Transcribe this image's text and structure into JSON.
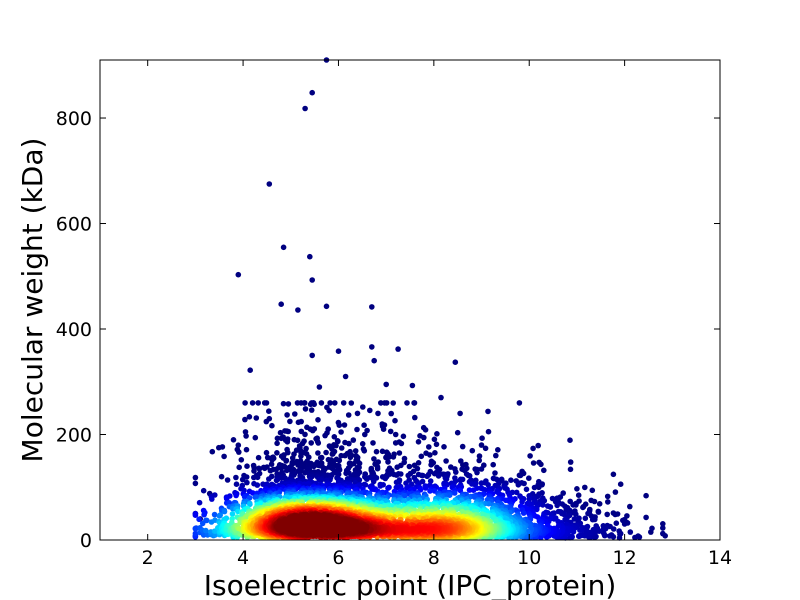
{
  "chart_data": {
    "type": "scatter",
    "title": "",
    "xlabel": "Isoelectric point (IPC_protein)",
    "ylabel": "Molecular weight (kDa)",
    "xlim": [
      1,
      14
    ],
    "ylim": [
      0,
      910
    ],
    "xticks": [
      2,
      4,
      6,
      8,
      10,
      12,
      14
    ],
    "yticks": [
      0,
      200,
      400,
      600,
      800
    ],
    "grid": false,
    "legend": "none",
    "colormap": "jet (point density: blue = low, red = high)",
    "density_peak": {
      "x": 5.4,
      "y": 38
    },
    "points": [
      {
        "x": 5.75,
        "y": 910
      },
      {
        "x": 5.45,
        "y": 848
      },
      {
        "x": 5.3,
        "y": 818
      },
      {
        "x": 4.55,
        "y": 675
      },
      {
        "x": 4.85,
        "y": 555
      },
      {
        "x": 5.4,
        "y": 537
      },
      {
        "x": 3.9,
        "y": 503
      },
      {
        "x": 5.45,
        "y": 493
      },
      {
        "x": 4.8,
        "y": 447
      },
      {
        "x": 5.15,
        "y": 436
      },
      {
        "x": 5.75,
        "y": 443
      },
      {
        "x": 6.7,
        "y": 442
      },
      {
        "x": 6.7,
        "y": 366
      },
      {
        "x": 7.25,
        "y": 362
      },
      {
        "x": 6.0,
        "y": 358
      },
      {
        "x": 5.45,
        "y": 350
      },
      {
        "x": 8.45,
        "y": 337
      },
      {
        "x": 6.75,
        "y": 340
      },
      {
        "x": 4.15,
        "y": 322
      },
      {
        "x": 6.15,
        "y": 310
      },
      {
        "x": 7.0,
        "y": 295
      },
      {
        "x": 7.55,
        "y": 293
      },
      {
        "x": 8.15,
        "y": 270
      },
      {
        "x": 12.45,
        "y": 84
      },
      {
        "x": 12.85,
        "y": 8
      },
      {
        "x": 12.55,
        "y": 15
      },
      {
        "x": 3.0,
        "y": 50
      },
      {
        "x": 3.1,
        "y": 40
      },
      {
        "x": 3.3,
        "y": 88
      },
      {
        "x": 11.3,
        "y": 75
      },
      {
        "x": 11.0,
        "y": 97
      },
      {
        "x": 10.2,
        "y": 100
      },
      {
        "x": 3.55,
        "y": 120
      },
      {
        "x": 3.8,
        "y": 190
      },
      {
        "x": 4.05,
        "y": 205
      },
      {
        "x": 4.55,
        "y": 230
      },
      {
        "x": 4.95,
        "y": 258
      },
      {
        "x": 5.6,
        "y": 290
      },
      {
        "x": 8.55,
        "y": 240
      },
      {
        "x": 9.0,
        "y": 180
      },
      {
        "x": 9.3,
        "y": 160
      },
      {
        "x": 9.85,
        "y": 130
      },
      {
        "x": 7.6,
        "y": 232
      },
      {
        "x": 7.2,
        "y": 200
      },
      {
        "x": 6.4,
        "y": 240
      }
    ]
  }
}
